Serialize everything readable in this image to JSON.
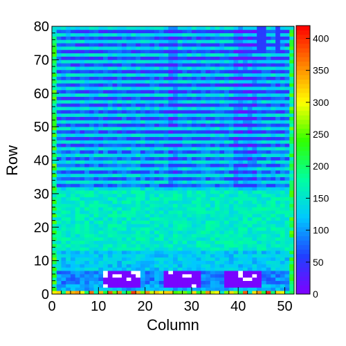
{
  "chart_data": {
    "type": "heatmap",
    "xlabel": "Column",
    "ylabel": "Row",
    "xlim": [
      0,
      52
    ],
    "ylim": [
      0,
      80
    ],
    "zlim": [
      0,
      420
    ],
    "x_ticks": [
      "0",
      "10",
      "20",
      "30",
      "40",
      "50"
    ],
    "y_ticks": [
      "0",
      "10",
      "20",
      "30",
      "40",
      "50",
      "60",
      "70",
      "80"
    ],
    "z_ticks": [
      "0",
      "50",
      "100",
      "150",
      "200",
      "250",
      "300",
      "350",
      "400"
    ],
    "colormap": [
      "#8000ff",
      "#2040ff",
      "#00c8ff",
      "#00ffa0",
      "#30ff00",
      "#ffff00",
      "#ff8000",
      "#ff0000"
    ],
    "grid": false,
    "legend": "colorbar-right",
    "regions": [
      {
        "rows": [
          0,
          1
        ],
        "cols": [
          0,
          52
        ],
        "value": 150,
        "note": "bottom edge row, varies 120-400"
      },
      {
        "rows": [
          1,
          3
        ],
        "cols": [
          0,
          52
        ],
        "value": 110
      },
      {
        "rows": [
          3,
          7
        ],
        "cols": [
          0,
          52
        ],
        "value": 90
      },
      {
        "rows": [
          7,
          13
        ],
        "cols": [
          0,
          52
        ],
        "value": 125
      },
      {
        "rows": [
          13,
          31
        ],
        "cols": [
          0,
          52
        ],
        "value": 160
      },
      {
        "rows": [
          31,
          44
        ],
        "cols": [
          0,
          52
        ],
        "value": 80,
        "stripes": "alternating 75/140 every other row"
      },
      {
        "rows": [
          44,
          80
        ],
        "cols": [
          0,
          52
        ],
        "value": 70,
        "stripes": "alternating 60/140 every other row"
      },
      {
        "rows": [
          2,
          7
        ],
        "cols": [
          11,
          19
        ],
        "value": 5,
        "note": "dead region with empty (white) cells"
      },
      {
        "rows": [
          2,
          7
        ],
        "cols": [
          24,
          32
        ],
        "value": 5,
        "note": "dead region with empty (white) cells"
      },
      {
        "rows": [
          2,
          7
        ],
        "cols": [
          37,
          45
        ],
        "value": 5,
        "note": "dead region with empty (white) cells"
      }
    ],
    "edge_columns_value": 200
  }
}
